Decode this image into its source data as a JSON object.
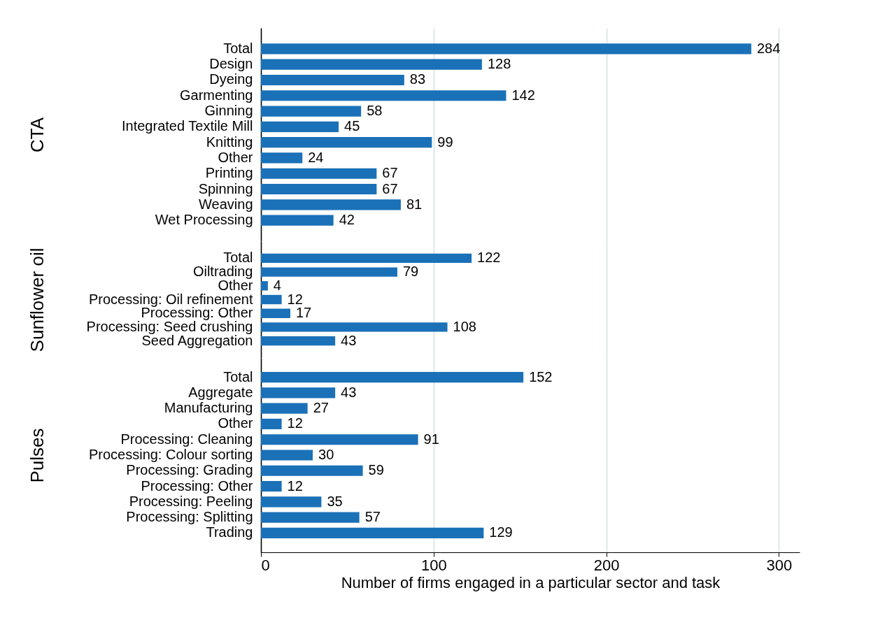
{
  "chart_data": [
    {
      "type": "bar",
      "orientation": "horizontal",
      "ylabel": "CTA",
      "categories": [
        "Total",
        "Design",
        "Dyeing",
        "Garmenting",
        "Ginning",
        "Integrated Textile Mill",
        "Knitting",
        "Other",
        "Printing",
        "Spinning",
        "Weaving",
        "Wet Processing"
      ],
      "values": [
        284,
        128,
        83,
        142,
        58,
        45,
        99,
        24,
        67,
        67,
        81,
        42
      ],
      "color": "#1a71b8",
      "xticks": [
        0,
        100,
        200,
        300
      ],
      "grid": "x",
      "data_labels": true,
      "tick_labels": "y"
    },
    {
      "type": "bar",
      "orientation": "horizontal",
      "ylabel": "Sunflower oil",
      "categories": [
        "Total",
        "Oiltrading",
        "Other",
        "Processing: Oil refinement",
        "Processing: Other",
        "Processing: Seed crushing",
        "Seed Aggregation"
      ],
      "values": [
        122,
        79,
        4,
        12,
        17,
        108,
        43
      ],
      "color": "#1a71b8",
      "xticks": [
        0,
        100,
        200,
        300
      ],
      "grid": "x",
      "data_labels": true,
      "tick_labels": "y"
    },
    {
      "type": "bar",
      "orientation": "horizontal",
      "ylabel": "Pulses",
      "xlabel": "Number of firms engaged in a particular sector and task",
      "categories": [
        "Total",
        "Aggregate",
        "Manufacturing",
        "Other",
        "Processing: Cleaning",
        "Processing: Colour sorting",
        "Processing: Grading",
        "Processing: Other",
        "Processing: Peeling",
        "Processing: Splitting",
        "Trading"
      ],
      "values": [
        152,
        43,
        27,
        12,
        91,
        30,
        59,
        12,
        35,
        57,
        129
      ],
      "color": "#1a71b8",
      "xlim": [
        0,
        312
      ],
      "xticks": [
        0,
        100,
        200,
        300
      ],
      "grid": "x",
      "data_labels": true
    }
  ]
}
